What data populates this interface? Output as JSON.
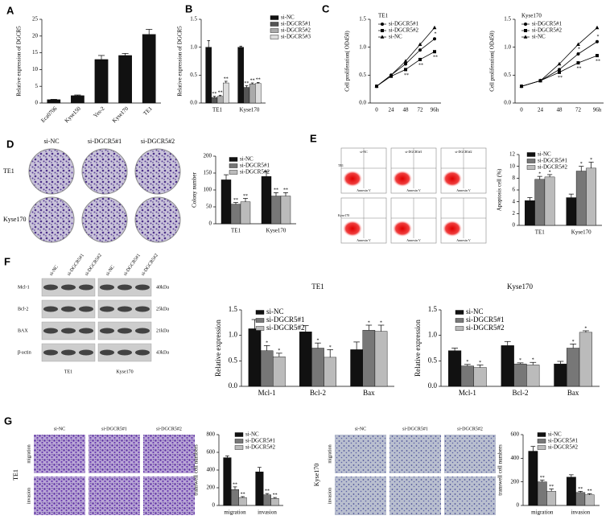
{
  "figure": {
    "panel_labels": [
      "A",
      "B",
      "C",
      "D",
      "E",
      "F",
      "G"
    ],
    "d_images": {
      "columns": [
        "si-NC",
        "si-DGCR5#1",
        "si-DGCR5#2"
      ],
      "rows": [
        "TE1",
        "Kyse170"
      ]
    },
    "e_images": {
      "columns": [
        "si-NC",
        "si-DGCR5#1",
        "si-DGCR5#2"
      ],
      "rows": [
        "TE1",
        "Kyse170"
      ],
      "axis_x": "Annexin V"
    },
    "f_blot": {
      "lanes": [
        "si-NC",
        "si-DGCR5#1",
        "si-DGCR5#2"
      ],
      "proteins": [
        "Mcl-1",
        "Bcl-2",
        "BAX",
        "β-actin"
      ],
      "sizes": [
        "40kDa",
        "25kDa",
        "21kDa",
        "43kDa"
      ],
      "cells": [
        "TE1",
        "Kyse170"
      ]
    },
    "g_images": {
      "columns": [
        "si-NC",
        "si-DGCR5#1",
        "si-DGCR5#2"
      ],
      "rows": [
        "migration",
        "invasion"
      ],
      "cells": [
        "TE1",
        "Kyse170"
      ]
    }
  },
  "chart_data": [
    {
      "type": "bar",
      "ylabel": "Relative expression of DGCR5",
      "categories": [
        "Eca0706",
        "Kyse150",
        "Yes-2",
        "Kyse170",
        "TE1"
      ],
      "values": [
        1,
        2.2,
        13,
        14.2,
        20.5
      ],
      "errors": [
        0.1,
        0.2,
        1.2,
        0.6,
        1.5
      ],
      "color": "#111111",
      "ylim": [
        0,
        25
      ],
      "yticks": [
        0,
        5,
        10,
        15,
        20,
        25
      ]
    },
    {
      "type": "bar",
      "ylabel": "Relative expression of DGCR5",
      "categories": [
        "TE1",
        "Kyse170"
      ],
      "series": [
        {
          "name": "si-NC",
          "color": "#111111",
          "values": [
            1.0,
            1.0
          ],
          "errors": [
            0.12,
            0.02
          ]
        },
        {
          "name": "si-DGCR5#1",
          "color": "#555555",
          "values": [
            0.1,
            0.28
          ],
          "errors": [
            0.02,
            0.03
          ],
          "marks": [
            "**",
            "**"
          ]
        },
        {
          "name": "si-DGCR5#2",
          "color": "#aaaaaa",
          "values": [
            0.12,
            0.34
          ],
          "errors": [
            0.02,
            0.02
          ],
          "marks": [
            "**",
            "**"
          ]
        },
        {
          "name": "si-DGCR5#3",
          "color": "#dddddd",
          "values": [
            0.36,
            0.35
          ],
          "errors": [
            0.03,
            0.02
          ],
          "marks": [
            "**",
            "**"
          ]
        }
      ],
      "ylim": [
        0,
        1.5
      ],
      "yticks": [
        {
          "value": 0,
          "label": "0.0"
        },
        0.5,
        {
          "value": 1,
          "label": "1.0"
        },
        1.5
      ]
    },
    {
      "type": "line",
      "title": "TE1",
      "ylabel": "Cell proliferation( OD450)",
      "categories": [
        "0",
        "24",
        "48",
        "72",
        "96h"
      ],
      "series": [
        {
          "name": "si-DGCR5#1",
          "color": "#000000",
          "marker": "circle",
          "values": [
            0.3,
            0.5,
            0.7,
            0.95,
            1.15
          ],
          "marks": [
            null,
            null,
            null,
            null,
            "*"
          ]
        },
        {
          "name": "si-DGCR5#2",
          "color": "#000000",
          "marker": "square",
          "values": [
            0.3,
            0.48,
            0.6,
            0.78,
            0.92
          ],
          "marks": [
            null,
            null,
            "**",
            "**",
            "**"
          ]
        },
        {
          "name": "si-NC",
          "color": "#000000",
          "marker": "triangle",
          "values": [
            0.3,
            0.5,
            0.75,
            1.05,
            1.35
          ]
        }
      ],
      "ylim": [
        0,
        1.5
      ],
      "yticks": [
        {
          "value": 0,
          "label": "0.0"
        },
        0.5,
        {
          "value": 1,
          "label": "1.0"
        },
        1.5
      ]
    },
    {
      "type": "line",
      "title": "Kyse170",
      "ylabel": "Cell proliferation( OD450)",
      "categories": [
        "0",
        "24",
        "48",
        "72",
        "96h"
      ],
      "series": [
        {
          "name": "si-DGCR5#1",
          "color": "#000000",
          "marker": "circle",
          "values": [
            0.3,
            0.4,
            0.6,
            0.88,
            1.1
          ],
          "marks": [
            null,
            null,
            null,
            "*",
            "*"
          ]
        },
        {
          "name": "si-DGCR5#2",
          "color": "#000000",
          "marker": "square",
          "values": [
            0.3,
            0.4,
            0.55,
            0.72,
            0.85
          ],
          "marks": [
            null,
            null,
            "**",
            "**",
            "**"
          ]
        },
        {
          "name": "si-NC",
          "color": "#000000",
          "marker": "triangle",
          "values": [
            0.3,
            0.4,
            0.7,
            1.05,
            1.35
          ]
        }
      ],
      "ylim": [
        0,
        1.5
      ],
      "yticks": [
        {
          "value": 0,
          "label": "0.0"
        },
        0.5,
        {
          "value": 1,
          "label": "1.0"
        },
        1.5
      ]
    },
    {
      "type": "bar",
      "ylabel": "Colony number",
      "categories": [
        "TE1",
        "Kyse170"
      ],
      "series": [
        {
          "name": "si-NC",
          "color": "#111111",
          "values": [
            130,
            140
          ],
          "errors": [
            15,
            15
          ]
        },
        {
          "name": "si-DGCR5#1",
          "color": "#777777",
          "values": [
            58,
            82
          ],
          "errors": [
            5,
            10
          ],
          "marks": [
            "**",
            "**"
          ]
        },
        {
          "name": "si-DGCR5#2",
          "color": "#bbbbbb",
          "values": [
            65,
            82
          ],
          "errors": [
            10,
            10
          ],
          "marks": [
            "**",
            "**"
          ]
        }
      ],
      "ylim": [
        0,
        200
      ],
      "yticks": [
        0,
        50,
        100,
        150,
        200
      ]
    },
    {
      "type": "bar",
      "ylabel": "Apoptosis cell (%)",
      "categories": [
        "TE1",
        "Kyse170"
      ],
      "series": [
        {
          "name": "si-NC",
          "color": "#111111",
          "values": [
            4.2,
            4.7
          ],
          "errors": [
            0.5,
            0.6
          ]
        },
        {
          "name": "si-DGCR5#1",
          "color": "#777777",
          "values": [
            7.8,
            9.2
          ],
          "errors": [
            0.5,
            0.8
          ],
          "marks": [
            "*",
            "*"
          ]
        },
        {
          "name": "si-DGCR5#2",
          "color": "#bbbbbb",
          "values": [
            8.2,
            9.7
          ],
          "errors": [
            0.4,
            1.0
          ],
          "marks": [
            "*",
            "*"
          ]
        }
      ],
      "ylim": [
        0,
        12
      ],
      "yticks": [
        0,
        2,
        4,
        6,
        8,
        10,
        12
      ]
    },
    {
      "type": "bar",
      "title": "TE1",
      "ylabel": "Relative expression",
      "categories": [
        "Mcl-1",
        "Bcl-2",
        "Bax"
      ],
      "series": [
        {
          "name": "si-NC",
          "color": "#111111",
          "values": [
            1.13,
            1.07,
            0.72
          ],
          "errors": [
            0.18,
            0.12,
            0.15
          ]
        },
        {
          "name": "si-DGCR5#1",
          "color": "#777777",
          "values": [
            0.7,
            0.75,
            1.1
          ],
          "errors": [
            0.1,
            0.1,
            0.1
          ],
          "marks": [
            "*",
            "*",
            "*"
          ]
        },
        {
          "name": "si-DGCR5#2",
          "color": "#bbbbbb",
          "values": [
            0.58,
            0.57,
            1.08
          ],
          "errors": [
            0.07,
            0.15,
            0.12
          ],
          "marks": [
            "*",
            "*",
            "*"
          ]
        }
      ],
      "ylim": [
        0,
        1.5
      ],
      "yticks": [
        {
          "value": 0,
          "label": "0.0"
        },
        0.5,
        {
          "value": 1,
          "label": "1.0"
        },
        1.5
      ]
    },
    {
      "type": "bar",
      "title": "Kyse170",
      "ylabel": "Relative expression",
      "categories": [
        "Mcl-1",
        "Bcl-2",
        "Bax"
      ],
      "series": [
        {
          "name": "si-NC",
          "color": "#111111",
          "values": [
            0.7,
            0.8,
            0.44
          ],
          "errors": [
            0.05,
            0.08,
            0.05
          ]
        },
        {
          "name": "si-DGCR5#1",
          "color": "#777777",
          "values": [
            0.4,
            0.44,
            0.75
          ],
          "errors": [
            0.03,
            0.02,
            0.08
          ],
          "marks": [
            "*",
            "*",
            "*"
          ]
        },
        {
          "name": "si-DGCR5#2",
          "color": "#bbbbbb",
          "values": [
            0.37,
            0.42,
            1.06
          ],
          "errors": [
            0.05,
            0.05,
            0.03
          ],
          "marks": [
            "*",
            "*",
            "*"
          ]
        }
      ],
      "ylim": [
        0,
        1.5
      ],
      "yticks": [
        {
          "value": 0,
          "label": "0.0"
        },
        0.5,
        {
          "value": 1,
          "label": "1.0"
        },
        1.5
      ]
    },
    {
      "type": "bar",
      "ylabel": "transwell cell numbers",
      "categories": [
        "migration",
        "invasion"
      ],
      "series": [
        {
          "name": "si-NC",
          "color": "#111111",
          "values": [
            540,
            380
          ],
          "errors": [
            20,
            50
          ]
        },
        {
          "name": "si-DGCR5#1",
          "color": "#777777",
          "values": [
            180,
            120
          ],
          "errors": [
            30,
            15
          ],
          "marks": [
            "**",
            "**"
          ]
        },
        {
          "name": "si-DGCR5#2",
          "color": "#bbbbbb",
          "values": [
            90,
            80
          ],
          "errors": [
            10,
            10
          ],
          "marks": [
            "**",
            "**"
          ]
        }
      ],
      "ylim": [
        0,
        800
      ],
      "yticks": [
        0,
        200,
        400,
        600,
        800
      ]
    },
    {
      "type": "bar",
      "ylabel": "transwell cell numbers",
      "categories": [
        "migration",
        "invasion"
      ],
      "series": [
        {
          "name": "si-NC",
          "color": "#111111",
          "values": [
            460,
            240
          ],
          "errors": [
            40,
            20
          ]
        },
        {
          "name": "si-DGCR5#1",
          "color": "#777777",
          "values": [
            200,
            110
          ],
          "errors": [
            15,
            10
          ],
          "marks": [
            "**",
            "**"
          ]
        },
        {
          "name": "si-DGCR5#2",
          "color": "#bbbbbb",
          "values": [
            120,
            90
          ],
          "errors": [
            20,
            10
          ],
          "marks": [
            "**",
            "**"
          ]
        }
      ],
      "ylim": [
        0,
        600
      ],
      "yticks": [
        0,
        200,
        400,
        600
      ]
    }
  ]
}
